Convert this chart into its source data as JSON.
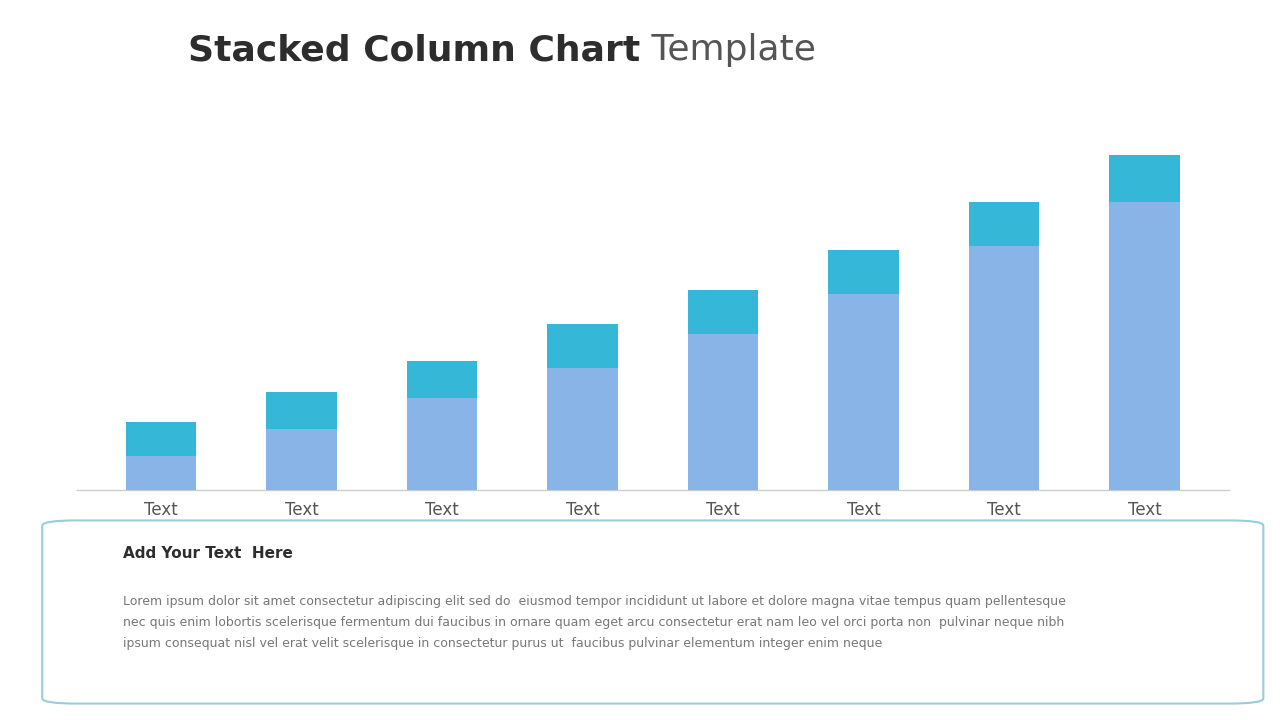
{
  "title_bold": "Stacked Column Chart",
  "title_normal": " Template",
  "title_fontsize": 26,
  "title_bold_color": "#2d2d2d",
  "title_normal_color": "#555555",
  "background_color": "#ffffff",
  "categories": [
    "Text",
    "Text",
    "Text",
    "Text",
    "Text",
    "Text",
    "Text",
    "Text"
  ],
  "bottom_values": [
    1.0,
    1.8,
    2.7,
    3.6,
    4.6,
    5.8,
    7.2,
    8.5
  ],
  "top_values": [
    1.0,
    1.1,
    1.1,
    1.3,
    1.3,
    1.3,
    1.3,
    1.4
  ],
  "bar_color_bottom": "#88b4e8",
  "bar_color_top": "#35b8d8",
  "bar_width": 0.5,
  "ylim": [
    0,
    11.5
  ],
  "text_box_title": "Add Your Text  Here",
  "text_box_title_color": "#2d2d2d",
  "text_box_body_line1": "Lorem ipsum dolor sit amet consectetur adipiscing elit sed do  eiusmod tempor incididunt ut labore et dolore magna vitae tempus quam pellentesque",
  "text_box_body_line2": "nec quis enim lobortis scelerisque fermentum dui faucibus in ornare quam eget arcu consectetur erat nam leo vel orci porta non  pulvinar neque nibh",
  "text_box_body_line3": "ipsum consequat nisl vel erat velit scelerisque in consectetur purus ut  faucibus pulvinar elementum integer enim neque",
  "text_box_body_color": "#777777",
  "text_box_border_color": "#99ccdd",
  "axis_color": "#cccccc",
  "tick_label_color": "#555555",
  "tick_label_fontsize": 12
}
